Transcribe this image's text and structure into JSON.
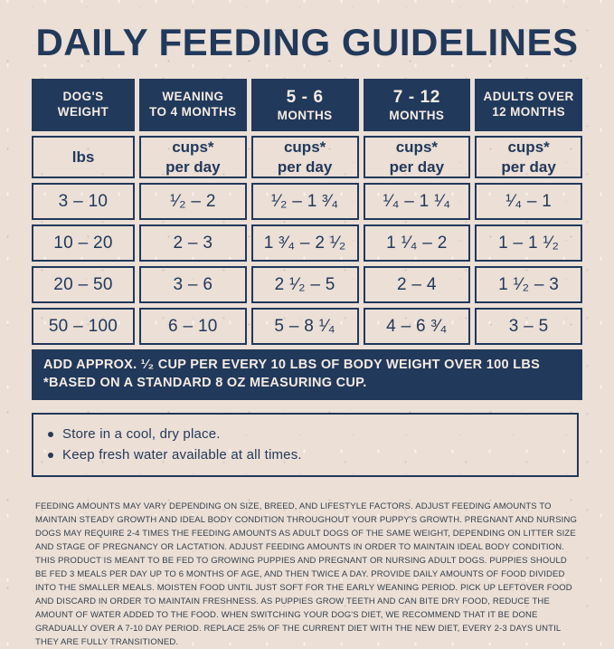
{
  "title": "DAILY FEEDING GUIDELINES",
  "colors": {
    "navy": "#21395b",
    "paper": "#ebdfd6",
    "cream_text": "#f5ece3",
    "fine_print_ink": "#343f4b"
  },
  "table": {
    "columns": [
      {
        "line1": "DOG'S",
        "line2": "WEIGHT"
      },
      {
        "line1": "WEANING",
        "line2": "TO 4 MONTHS"
      },
      {
        "line1": "5 - 6",
        "line2": "MONTHS"
      },
      {
        "line1": "7 - 12",
        "line2": "MONTHS"
      },
      {
        "line1": "ADULTS OVER",
        "line2": "12 MONTHS"
      }
    ],
    "units": {
      "weight_unit": "lbs",
      "dose_line1": "cups*",
      "dose_line2": "per day"
    },
    "rows": [
      [
        "3 – 10",
        "¹⁄₂ – 2",
        "¹⁄₂ – 1 ³⁄₄",
        "¹⁄₄ – 1 ¹⁄₄",
        "¹⁄₄ – 1"
      ],
      [
        "10 – 20",
        "2 – 3",
        "1 ³⁄₄ – 2 ¹⁄₂",
        "1 ¹⁄₄ – 2",
        "1 – 1 ¹⁄₂"
      ],
      [
        "20 – 50",
        "3 – 6",
        "2 ¹⁄₂ – 5",
        "2 – 4",
        "1 ¹⁄₂ – 3"
      ],
      [
        "50 – 100",
        "6 – 10",
        "5 – 8 ¹⁄₄",
        "4 – 6 ³⁄₄",
        "3 – 5"
      ]
    ],
    "footnote_line1": "ADD APPROX. ¹⁄₂ CUP PER EVERY 10 LBS OF BODY WEIGHT OVER 100 LBS",
    "footnote_line2": "*BASED ON A STANDARD 8 OZ MEASURING CUP."
  },
  "notes": [
    "Store in a cool, dry place.",
    "Keep fresh water available at all times."
  ],
  "fine_print": "FEEDING AMOUNTS MAY VARY DEPENDING ON SIZE, BREED, AND LIFESTYLE FACTORS. ADJUST FEEDING AMOUNTS TO MAINTAIN STEADY GROWTH AND IDEAL BODY CONDITION THROUGHOUT YOUR PUPPY'S GROWTH. PREGNANT AND NURSING DOGS MAY REQUIRE 2-4 TIMES THE FEEDING AMOUNTS AS ADULT DOGS OF THE SAME WEIGHT, DEPENDING ON LITTER SIZE AND STAGE OF PREGNANCY OR LACTATION. ADJUST FEEDING AMOUNTS IN ORDER TO MAINTAIN IDEAL BODY CONDITION. THIS PRODUCT IS MEANT TO BE FED TO GROWING PUPPIES AND PREGNANT OR NURSING ADULT DOGS. PUPPIES SHOULD BE FED 3 MEALS PER DAY UP TO 6 MONTHS OF AGE, AND THEN TWICE A DAY. PROVIDE DAILY AMOUNTS OF FOOD DIVIDED INTO THE SMALLER MEALS. MOISTEN FOOD UNTIL JUST SOFT FOR THE EARLY WEANING PERIOD. PICK UP LEFTOVER FOOD AND DISCARD IN ORDER TO MAINTAIN FRESHNESS. AS PUPPIES GROW TEETH AND CAN BITE DRY FOOD, REDUCE THE AMOUNT OF WATER ADDED TO THE FOOD. WHEN SWITCHING YOUR DOG'S DIET, WE RECOMMEND THAT IT BE DONE GRADUALLY OVER A 7-10 DAY PERIOD. REPLACE 25% OF THE CURRENT DIET WITH THE NEW DIET, EVERY 2-3 DAYS UNTIL THEY ARE FULLY TRANSITIONED."
}
